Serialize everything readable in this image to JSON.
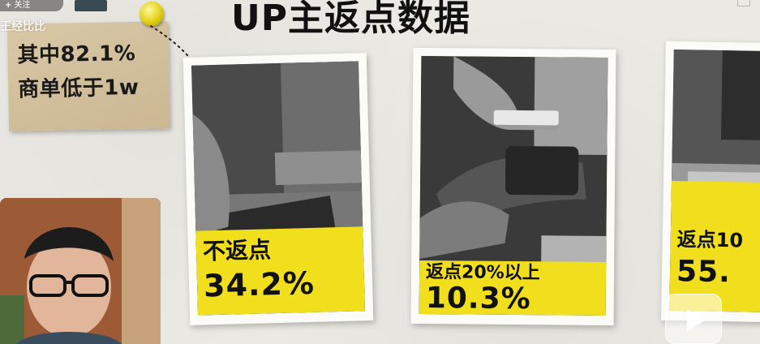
{
  "overlay": {
    "follow_plus": "+",
    "follow_label": "关注",
    "channel_name": "王经比比"
  },
  "title": "UP主返点数据",
  "sticky_note": {
    "line1": "其中82.1%",
    "line2": "商单低于1w"
  },
  "cards": [
    {
      "label": "不返点",
      "value": "34.2%"
    },
    {
      "label": "返点20%以上",
      "value": "10.3%"
    },
    {
      "label": "返点10",
      "value": "55."
    }
  ],
  "colors": {
    "accent_yellow": "#f1de1d",
    "pin_yellow": "#e2cf12",
    "note_paper": "#d8c7a6"
  },
  "icons": [
    "pin-icon",
    "play-icon"
  ]
}
